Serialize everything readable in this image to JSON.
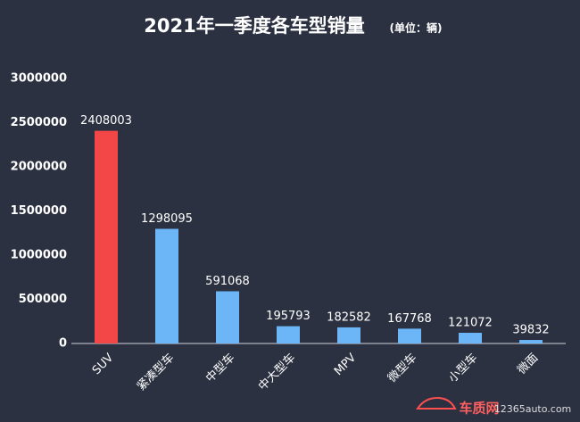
{
  "chart_data": {
    "type": "bar",
    "title": "2021年一季度各车型销量",
    "subtitle": "(单位：辆)",
    "categories": [
      "SUV",
      "紧凑型车",
      "中型车",
      "中大型车",
      "MPV",
      "微型车",
      "小型车",
      "微面"
    ],
    "values": [
      2408003,
      1298095,
      591068,
      195793,
      182582,
      167768,
      121072,
      39832
    ],
    "colors": [
      "#f34747",
      "#6cb6f7",
      "#6cb6f7",
      "#6cb6f7",
      "#6cb6f7",
      "#6cb6f7",
      "#6cb6f7",
      "#6cb6f7"
    ],
    "ylim": [
      0,
      3000000
    ],
    "yticks": [
      0,
      500000,
      1000000,
      1500000,
      2000000,
      2500000,
      3000000
    ],
    "grid": false
  },
  "watermark": {
    "brand": "车质网",
    "site": "12365auto.com"
  }
}
